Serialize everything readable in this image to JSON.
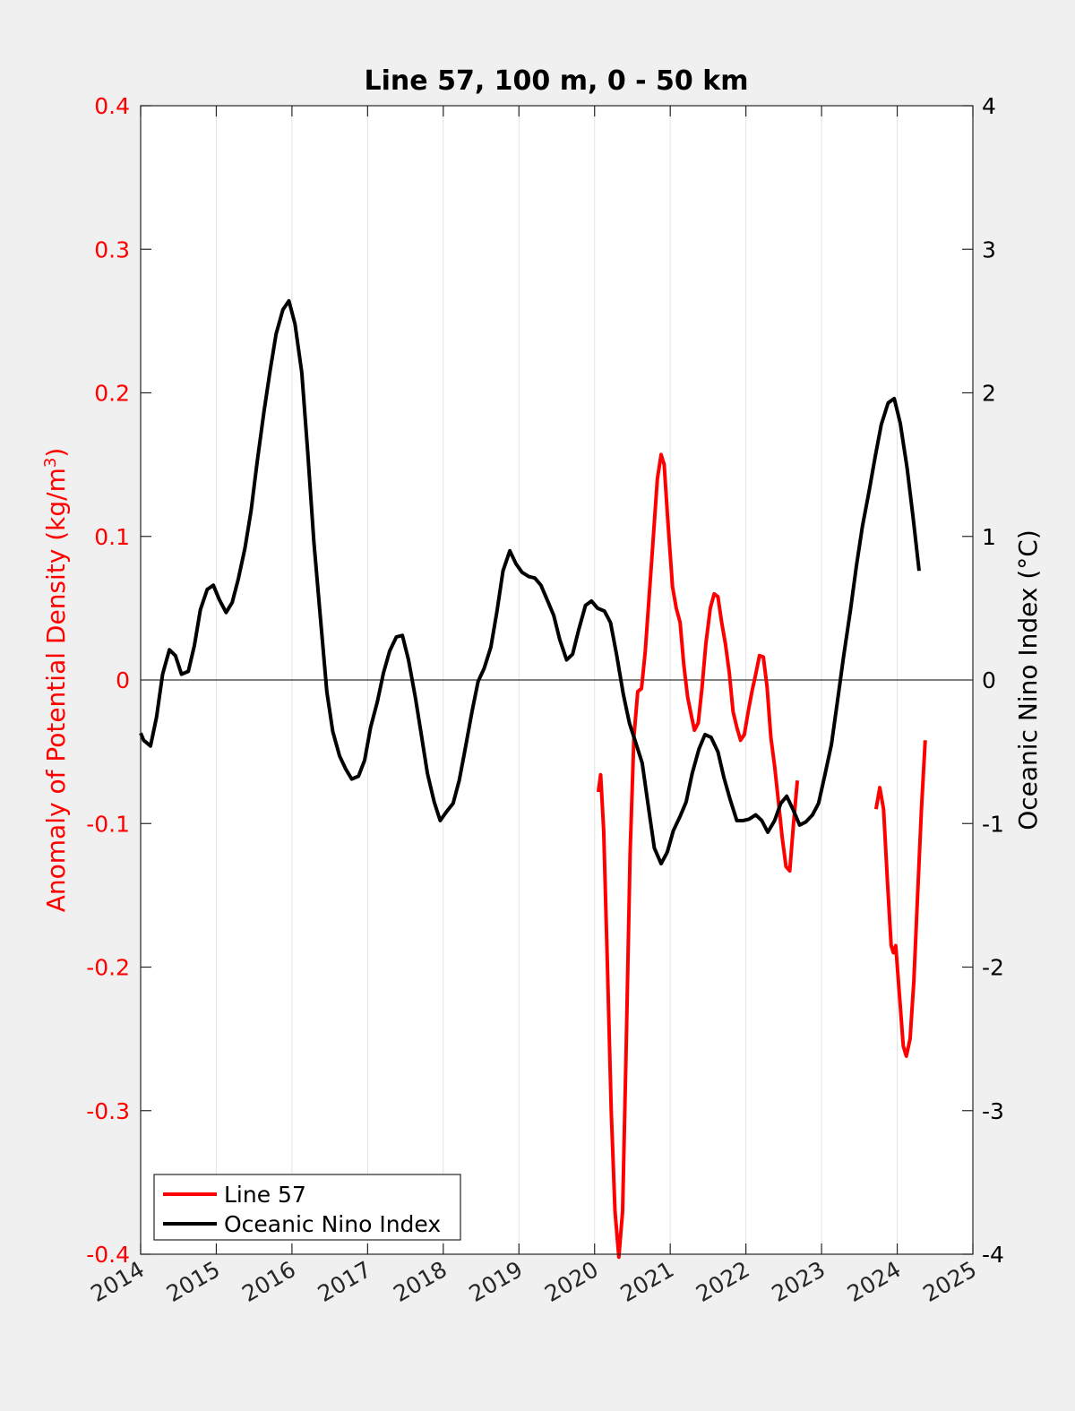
{
  "chart_data": {
    "type": "line",
    "title": "Line 57, 100 m, 0 - 50 km",
    "x_ticks": [
      "2014",
      "2015",
      "2016",
      "2017",
      "2018",
      "2019",
      "2020",
      "2021",
      "2022",
      "2023",
      "2024",
      "2025"
    ],
    "xlim": [
      2014,
      2025
    ],
    "left_axis": {
      "label": "Anomaly of Potential Density (kg/m",
      "label_sup": "3",
      "label_end": ")",
      "ylim": [
        -0.4,
        0.4
      ],
      "ticks": [
        "-0.4",
        "-0.3",
        "-0.2",
        "-0.1",
        "0",
        "0.1",
        "0.2",
        "0.3",
        "0.4"
      ],
      "color": "#ff0000"
    },
    "right_axis": {
      "label": "Oceanic Nino Index (°C)",
      "ylim": [
        -4,
        4
      ],
      "ticks": [
        "-4",
        "-3",
        "-2",
        "-1",
        "0",
        "1",
        "2",
        "3",
        "4"
      ],
      "color": "#000000"
    },
    "grid": "vertical",
    "legend_position": "bottom-left",
    "series": [
      {
        "name": "Line 57",
        "axis": "left",
        "color": "#ff0000",
        "segments": [
          [
            [
              2020.05,
              -0.078
            ],
            [
              2020.08,
              -0.066
            ],
            [
              2020.12,
              -0.105
            ],
            [
              2020.17,
              -0.2
            ],
            [
              2020.22,
              -0.3
            ],
            [
              2020.27,
              -0.37
            ],
            [
              2020.32,
              -0.402
            ],
            [
              2020.37,
              -0.37
            ],
            [
              2020.42,
              -0.25
            ],
            [
              2020.47,
              -0.12
            ],
            [
              2020.52,
              -0.04
            ],
            [
              2020.57,
              -0.008
            ],
            [
              2020.62,
              -0.006
            ],
            [
              2020.67,
              0.02
            ],
            [
              2020.75,
              0.08
            ],
            [
              2020.83,
              0.14
            ],
            [
              2020.88,
              0.157
            ],
            [
              2020.92,
              0.15
            ],
            [
              2020.97,
              0.11
            ],
            [
              2021.03,
              0.065
            ],
            [
              2021.08,
              0.05
            ],
            [
              2021.13,
              0.04
            ],
            [
              2021.18,
              0.01
            ],
            [
              2021.23,
              -0.012
            ],
            [
              2021.28,
              -0.025
            ],
            [
              2021.32,
              -0.035
            ],
            [
              2021.37,
              -0.03
            ],
            [
              2021.42,
              -0.005
            ],
            [
              2021.47,
              0.025
            ],
            [
              2021.53,
              0.05
            ],
            [
              2021.58,
              0.06
            ],
            [
              2021.63,
              0.058
            ],
            [
              2021.68,
              0.04
            ],
            [
              2021.73,
              0.025
            ],
            [
              2021.78,
              0.005
            ],
            [
              2021.83,
              -0.022
            ],
            [
              2021.88,
              -0.033
            ],
            [
              2021.93,
              -0.042
            ],
            [
              2021.98,
              -0.038
            ],
            [
              2022.03,
              -0.022
            ],
            [
              2022.08,
              -0.008
            ],
            [
              2022.13,
              0.004
            ],
            [
              2022.18,
              0.017
            ],
            [
              2022.23,
              0.016
            ],
            [
              2022.28,
              -0.005
            ],
            [
              2022.33,
              -0.04
            ],
            [
              2022.38,
              -0.06
            ],
            [
              2022.43,
              -0.085
            ],
            [
              2022.48,
              -0.11
            ],
            [
              2022.53,
              -0.13
            ],
            [
              2022.58,
              -0.133
            ],
            [
              2022.63,
              -0.1
            ],
            [
              2022.68,
              -0.07
            ]
          ],
          [
            [
              2023.72,
              -0.09
            ],
            [
              2023.77,
              -0.075
            ],
            [
              2023.82,
              -0.09
            ],
            [
              2023.87,
              -0.14
            ],
            [
              2023.92,
              -0.185
            ],
            [
              2023.95,
              -0.19
            ],
            [
              2023.98,
              -0.185
            ],
            [
              2024.03,
              -0.22
            ],
            [
              2024.08,
              -0.255
            ],
            [
              2024.12,
              -0.262
            ],
            [
              2024.17,
              -0.25
            ],
            [
              2024.22,
              -0.21
            ],
            [
              2024.27,
              -0.15
            ],
            [
              2024.32,
              -0.09
            ],
            [
              2024.37,
              -0.042
            ]
          ]
        ]
      },
      {
        "name": "Oceanic Nino Index",
        "axis": "right",
        "color": "#000000",
        "segments": [
          [
            [
              2014.0,
              -0.37
            ],
            [
              2014.04,
              -0.42
            ],
            [
              2014.13,
              -0.46
            ],
            [
              2014.21,
              -0.26
            ],
            [
              2014.29,
              0.04
            ],
            [
              2014.38,
              0.21
            ],
            [
              2014.46,
              0.17
            ],
            [
              2014.54,
              0.04
            ],
            [
              2014.63,
              0.06
            ],
            [
              2014.71,
              0.24
            ],
            [
              2014.79,
              0.49
            ],
            [
              2014.88,
              0.63
            ],
            [
              2014.96,
              0.66
            ],
            [
              2015.04,
              0.56
            ],
            [
              2015.13,
              0.47
            ],
            [
              2015.21,
              0.54
            ],
            [
              2015.29,
              0.7
            ],
            [
              2015.38,
              0.92
            ],
            [
              2015.46,
              1.18
            ],
            [
              2015.54,
              1.52
            ],
            [
              2015.63,
              1.87
            ],
            [
              2015.71,
              2.15
            ],
            [
              2015.79,
              2.41
            ],
            [
              2015.88,
              2.58
            ],
            [
              2015.96,
              2.64
            ],
            [
              2016.04,
              2.48
            ],
            [
              2016.13,
              2.14
            ],
            [
              2016.21,
              1.58
            ],
            [
              2016.29,
              0.96
            ],
            [
              2016.38,
              0.41
            ],
            [
              2016.46,
              -0.08
            ],
            [
              2016.54,
              -0.36
            ],
            [
              2016.63,
              -0.53
            ],
            [
              2016.71,
              -0.62
            ],
            [
              2016.79,
              -0.69
            ],
            [
              2016.88,
              -0.67
            ],
            [
              2016.96,
              -0.56
            ],
            [
              2017.04,
              -0.33
            ],
            [
              2017.13,
              -0.15
            ],
            [
              2017.21,
              0.05
            ],
            [
              2017.29,
              0.2
            ],
            [
              2017.38,
              0.3
            ],
            [
              2017.46,
              0.31
            ],
            [
              2017.54,
              0.14
            ],
            [
              2017.63,
              -0.12
            ],
            [
              2017.71,
              -0.38
            ],
            [
              2017.79,
              -0.65
            ],
            [
              2017.88,
              -0.85
            ],
            [
              2017.96,
              -0.98
            ],
            [
              2018.04,
              -0.92
            ],
            [
              2018.13,
              -0.86
            ],
            [
              2018.21,
              -0.7
            ],
            [
              2018.29,
              -0.48
            ],
            [
              2018.38,
              -0.22
            ],
            [
              2018.46,
              -0.01
            ],
            [
              2018.54,
              0.08
            ],
            [
              2018.63,
              0.23
            ],
            [
              2018.71,
              0.48
            ],
            [
              2018.79,
              0.76
            ],
            [
              2018.88,
              0.9
            ],
            [
              2018.96,
              0.81
            ],
            [
              2019.04,
              0.75
            ],
            [
              2019.13,
              0.72
            ],
            [
              2019.21,
              0.71
            ],
            [
              2019.29,
              0.66
            ],
            [
              2019.38,
              0.55
            ],
            [
              2019.46,
              0.45
            ],
            [
              2019.54,
              0.28
            ],
            [
              2019.63,
              0.14
            ],
            [
              2019.71,
              0.18
            ],
            [
              2019.79,
              0.35
            ],
            [
              2019.88,
              0.52
            ],
            [
              2019.96,
              0.55
            ],
            [
              2020.04,
              0.5
            ],
            [
              2020.13,
              0.48
            ],
            [
              2020.21,
              0.4
            ],
            [
              2020.29,
              0.18
            ],
            [
              2020.38,
              -0.1
            ],
            [
              2020.46,
              -0.3
            ],
            [
              2020.54,
              -0.43
            ],
            [
              2020.63,
              -0.58
            ],
            [
              2020.71,
              -0.88
            ],
            [
              2020.79,
              -1.17
            ],
            [
              2020.88,
              -1.28
            ],
            [
              2020.96,
              -1.2
            ],
            [
              2021.04,
              -1.05
            ],
            [
              2021.13,
              -0.95
            ],
            [
              2021.21,
              -0.85
            ],
            [
              2021.29,
              -0.65
            ],
            [
              2021.38,
              -0.48
            ],
            [
              2021.46,
              -0.38
            ],
            [
              2021.54,
              -0.4
            ],
            [
              2021.63,
              -0.5
            ],
            [
              2021.71,
              -0.68
            ],
            [
              2021.79,
              -0.83
            ],
            [
              2021.88,
              -0.98
            ],
            [
              2021.96,
              -0.98
            ],
            [
              2022.04,
              -0.97
            ],
            [
              2022.13,
              -0.94
            ],
            [
              2022.21,
              -0.98
            ],
            [
              2022.29,
              -1.06
            ],
            [
              2022.38,
              -0.98
            ],
            [
              2022.46,
              -0.86
            ],
            [
              2022.54,
              -0.81
            ],
            [
              2022.63,
              -0.91
            ],
            [
              2022.71,
              -1.01
            ],
            [
              2022.79,
              -0.99
            ],
            [
              2022.88,
              -0.94
            ],
            [
              2022.96,
              -0.86
            ],
            [
              2023.04,
              -0.67
            ],
            [
              2023.13,
              -0.45
            ],
            [
              2023.21,
              -0.15
            ],
            [
              2023.29,
              0.16
            ],
            [
              2023.38,
              0.48
            ],
            [
              2023.46,
              0.79
            ],
            [
              2023.54,
              1.07
            ],
            [
              2023.63,
              1.32
            ],
            [
              2023.71,
              1.56
            ],
            [
              2023.79,
              1.78
            ],
            [
              2023.88,
              1.93
            ],
            [
              2023.96,
              1.96
            ],
            [
              2024.04,
              1.79
            ],
            [
              2024.13,
              1.48
            ],
            [
              2024.21,
              1.13
            ],
            [
              2024.29,
              0.76
            ]
          ]
        ]
      }
    ]
  }
}
